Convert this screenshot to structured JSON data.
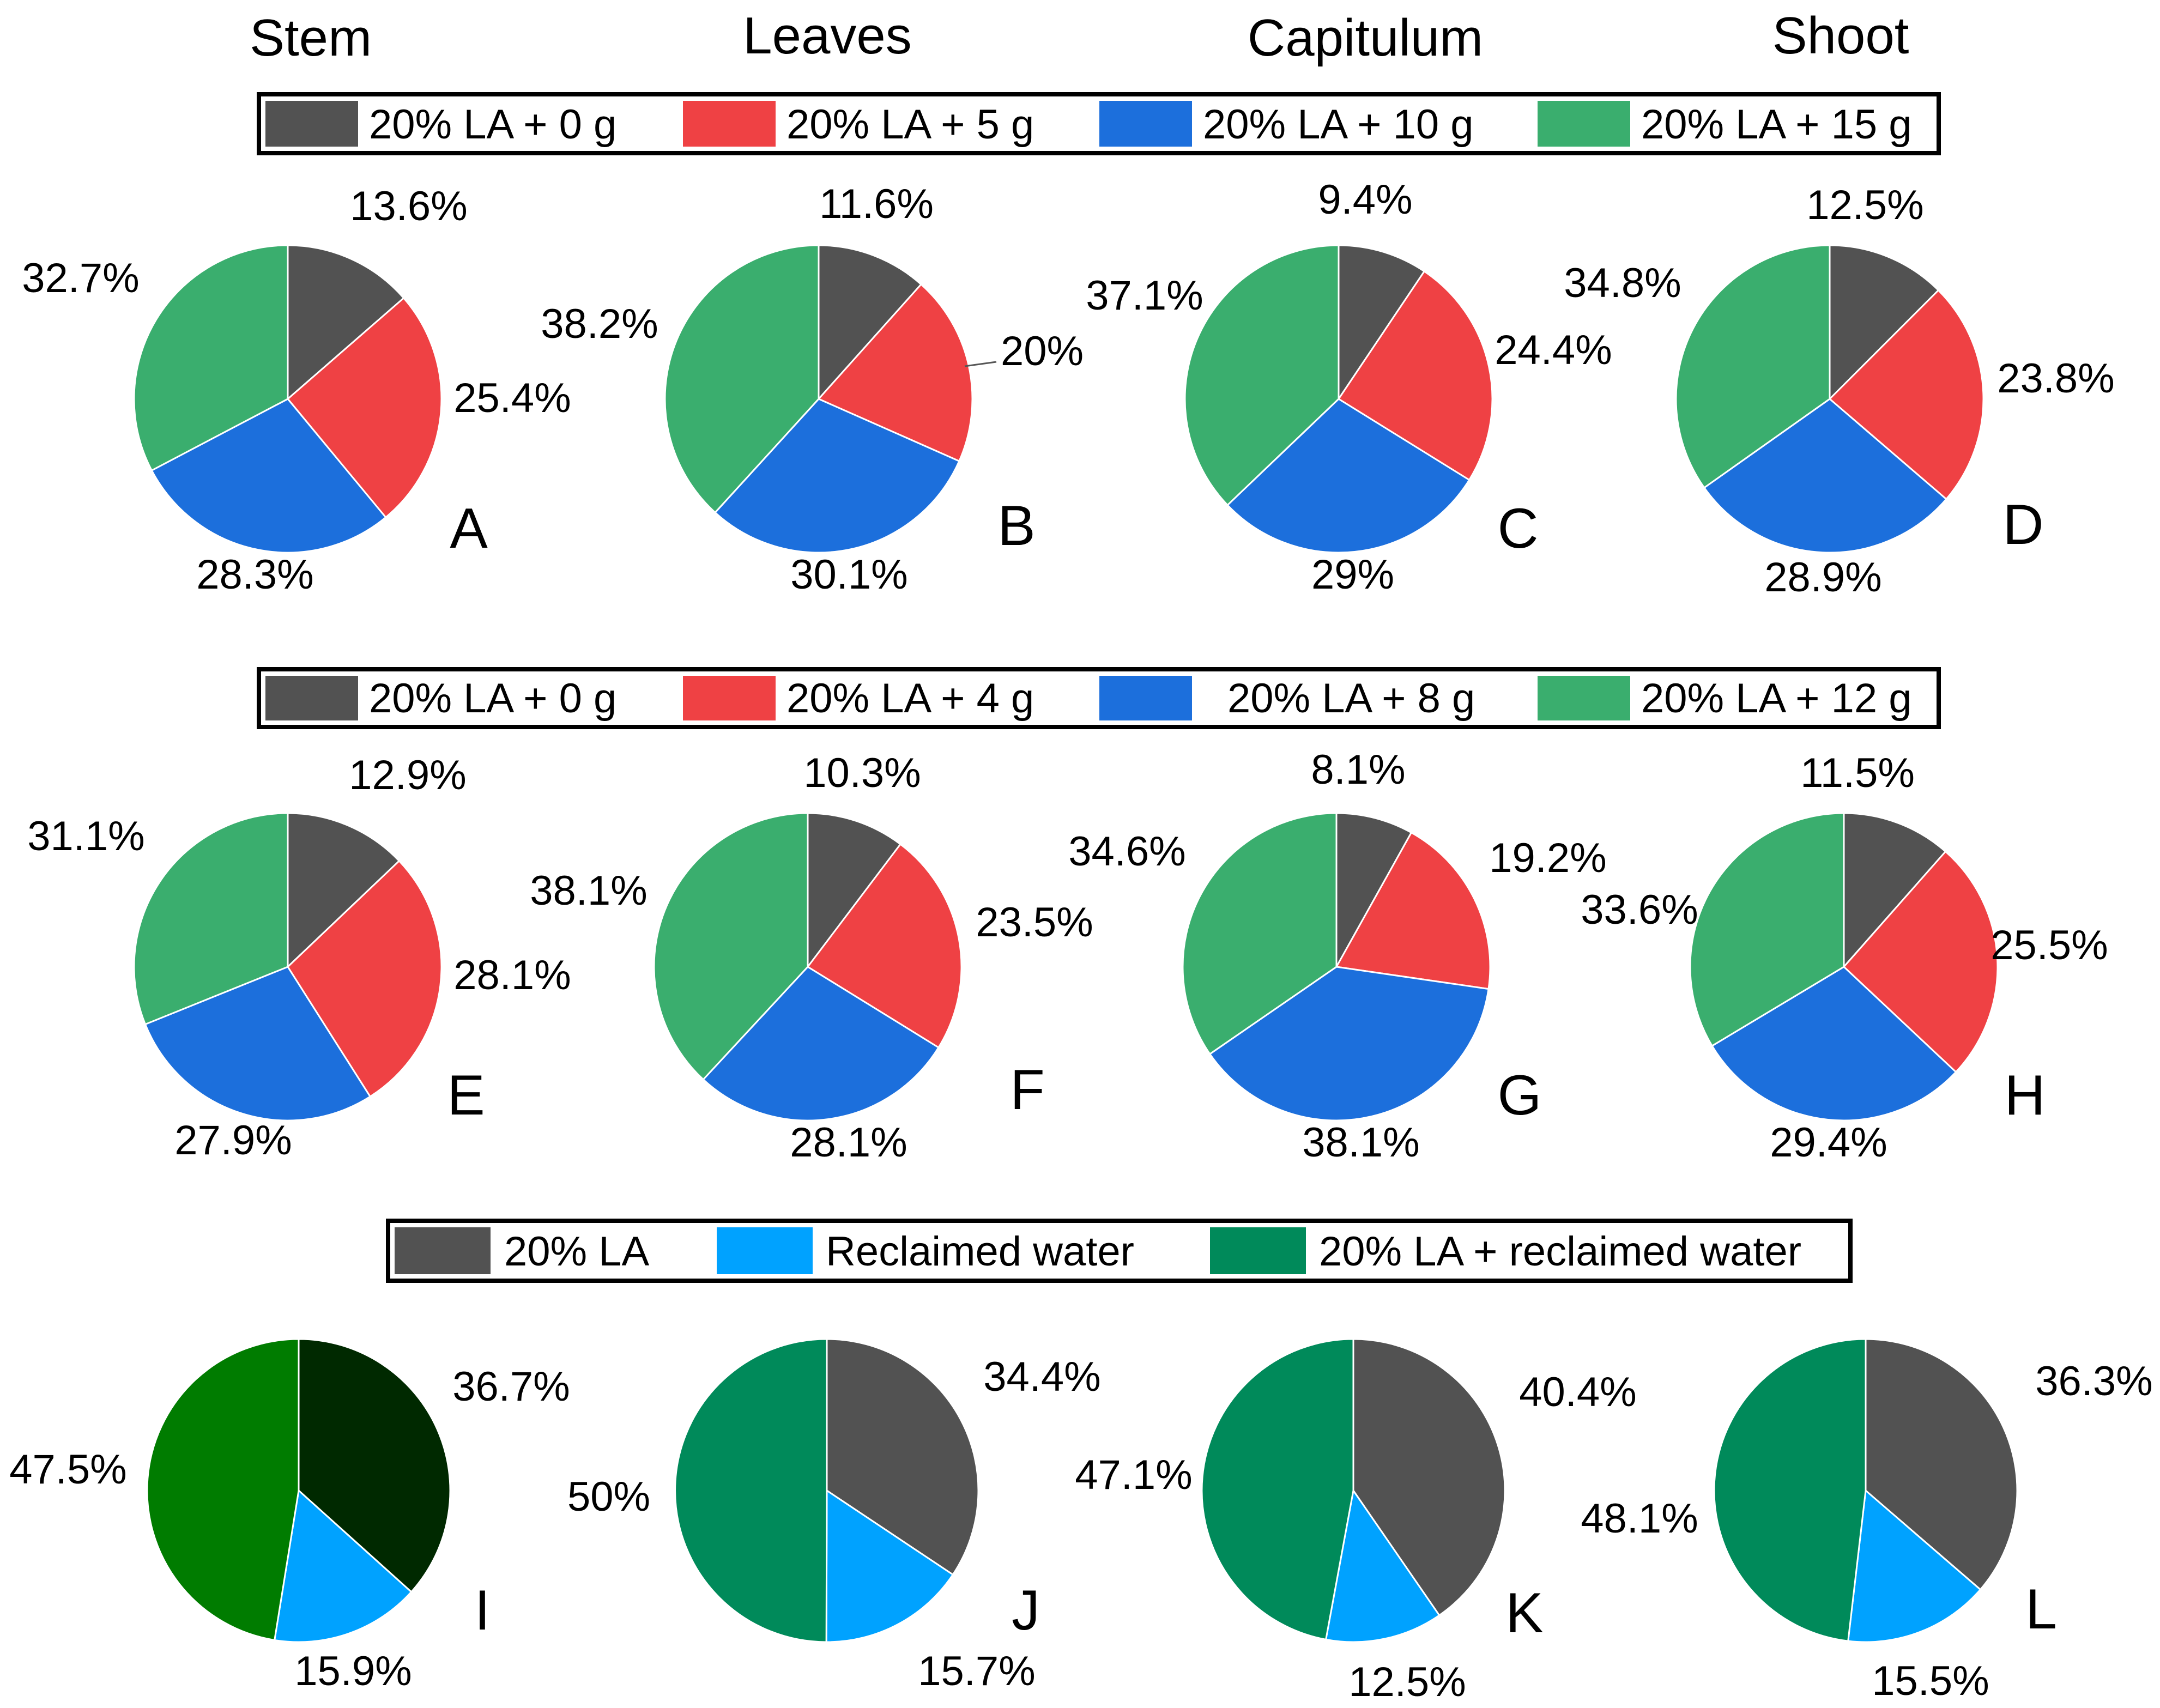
{
  "colors": {
    "la0": "#525252",
    "dose1": "#EF4144",
    "dose2": "#1C6FDC",
    "dose3": "#3AAE6E",
    "reclaimed": "#00A2FF",
    "combined": "#008A5A",
    "i_dark": "#002900",
    "i_green": "#007C00",
    "slice_edge": "#ffffff",
    "legend_border": "#000000"
  },
  "column_headers": [
    "Stem",
    "Leaves",
    "Capitulum",
    "Shoot"
  ],
  "legends": [
    {
      "items": [
        {
          "label": "20% LA + 0 g",
          "color_key": "la0"
        },
        {
          "label": "20% LA + 5 g",
          "color_key": "dose1"
        },
        {
          "label": "20% LA + 10 g",
          "color_key": "dose2"
        },
        {
          "label": "20% LA + 15 g",
          "color_key": "dose3"
        }
      ]
    },
    {
      "items": [
        {
          "label": "20% LA + 0 g",
          "color_key": "la0"
        },
        {
          "label": "20% LA + 4 g",
          "color_key": "dose1"
        },
        {
          "label": "20% LA + 8 g",
          "color_key": "dose2"
        },
        {
          "label": "20% LA + 12 g",
          "color_key": "dose3"
        }
      ]
    },
    {
      "items": [
        {
          "label": "20% LA",
          "color_key": "la0"
        },
        {
          "label": "Reclaimed water",
          "color_key": "reclaimed"
        },
        {
          "label": "20% LA + reclaimed water",
          "color_key": "combined"
        }
      ]
    }
  ],
  "chart_data": [
    {
      "type": "pie",
      "panel": "A",
      "column": "Stem",
      "legend_group": 0,
      "categories": [
        "20% LA + 0 g",
        "20% LA + 5 g",
        "20% LA + 10 g",
        "20% LA + 15 g"
      ],
      "values": [
        13.6,
        25.4,
        28.3,
        32.7
      ],
      "labels": [
        "13.6%",
        "25.4%",
        "28.3%",
        "32.7%"
      ],
      "color_keys": [
        "la0",
        "dose1",
        "dose2",
        "dose3"
      ]
    },
    {
      "type": "pie",
      "panel": "B",
      "column": "Leaves",
      "legend_group": 0,
      "categories": [
        "20% LA + 0 g",
        "20% LA + 5 g",
        "20% LA + 10 g",
        "20% LA + 15 g"
      ],
      "values": [
        11.6,
        20,
        30.1,
        38.2
      ],
      "labels": [
        "11.6%",
        "20%",
        "30.1%",
        "38.2%"
      ],
      "color_keys": [
        "la0",
        "dose1",
        "dose2",
        "dose3"
      ]
    },
    {
      "type": "pie",
      "panel": "C",
      "column": "Capitulum",
      "legend_group": 0,
      "categories": [
        "20% LA + 0 g",
        "20% LA + 5 g",
        "20% LA + 10 g",
        "20% LA + 15 g"
      ],
      "values": [
        9.4,
        24.4,
        29,
        37.1
      ],
      "labels": [
        "9.4%",
        "24.4%",
        "29%",
        "37.1%"
      ],
      "color_keys": [
        "la0",
        "dose1",
        "dose2",
        "dose3"
      ]
    },
    {
      "type": "pie",
      "panel": "D",
      "column": "Shoot",
      "legend_group": 0,
      "categories": [
        "20% LA + 0 g",
        "20% LA + 5 g",
        "20% LA + 10 g",
        "20% LA + 15 g"
      ],
      "values": [
        12.5,
        23.8,
        28.9,
        34.8
      ],
      "labels": [
        "12.5%",
        "23.8%",
        "28.9%",
        "34.8%"
      ],
      "color_keys": [
        "la0",
        "dose1",
        "dose2",
        "dose3"
      ]
    },
    {
      "type": "pie",
      "panel": "E",
      "column": "Stem",
      "legend_group": 1,
      "categories": [
        "20% LA + 0 g",
        "20% LA + 4 g",
        "20% LA + 8 g",
        "20% LA + 12 g"
      ],
      "values": [
        12.9,
        28.1,
        27.9,
        31.1
      ],
      "labels": [
        "12.9%",
        "28.1%",
        "27.9%",
        "31.1%"
      ],
      "color_keys": [
        "la0",
        "dose1",
        "dose2",
        "dose3"
      ]
    },
    {
      "type": "pie",
      "panel": "F",
      "column": "Leaves",
      "legend_group": 1,
      "categories": [
        "20% LA + 0 g",
        "20% LA + 4 g",
        "20% LA + 8 g",
        "20% LA + 12 g"
      ],
      "values": [
        10.3,
        23.5,
        28.1,
        38.1
      ],
      "labels": [
        "10.3%",
        "23.5%",
        "28.1%",
        "38.1%"
      ],
      "color_keys": [
        "la0",
        "dose1",
        "dose2",
        "dose3"
      ]
    },
    {
      "type": "pie",
      "panel": "G",
      "column": "Capitulum",
      "legend_group": 1,
      "categories": [
        "20% LA + 0 g",
        "20% LA + 4 g",
        "20% LA + 8 g",
        "20% LA + 12 g"
      ],
      "values": [
        8.1,
        19.2,
        38.1,
        34.6
      ],
      "labels": [
        "8.1%",
        "19.2%",
        "38.1%",
        "34.6%"
      ],
      "color_keys": [
        "la0",
        "dose1",
        "dose2",
        "dose3"
      ]
    },
    {
      "type": "pie",
      "panel": "H",
      "column": "Shoot",
      "legend_group": 1,
      "categories": [
        "20% LA + 0 g",
        "20% LA + 4 g",
        "20% LA + 8 g",
        "20% LA + 12 g"
      ],
      "values": [
        11.5,
        25.5,
        29.4,
        33.6
      ],
      "labels": [
        "11.5%",
        "25.5%",
        "29.4%",
        "33.6%"
      ],
      "color_keys": [
        "la0",
        "dose1",
        "dose2",
        "dose3"
      ]
    },
    {
      "type": "pie",
      "panel": "I",
      "column": "Stem",
      "legend_group": 2,
      "categories": [
        "20% LA",
        "Reclaimed water",
        "20% LA + reclaimed water"
      ],
      "values": [
        36.7,
        15.9,
        47.5
      ],
      "labels": [
        "36.7%",
        "15.9%",
        "47.5%"
      ],
      "color_keys": [
        "i_dark",
        "reclaimed",
        "i_green"
      ]
    },
    {
      "type": "pie",
      "panel": "J",
      "column": "Leaves",
      "legend_group": 2,
      "categories": [
        "20% LA",
        "Reclaimed water",
        "20% LA + reclaimed water"
      ],
      "values": [
        34.4,
        15.7,
        50
      ],
      "labels": [
        "34.4%",
        "15.7%",
        "50%"
      ],
      "color_keys": [
        "la0",
        "reclaimed",
        "combined"
      ]
    },
    {
      "type": "pie",
      "panel": "K",
      "column": "Capitulum",
      "legend_group": 2,
      "categories": [
        "20% LA",
        "Reclaimed water",
        "20% LA + reclaimed water"
      ],
      "values": [
        40.4,
        12.5,
        47.1
      ],
      "labels": [
        "40.4%",
        "12.5%",
        "47.1%"
      ],
      "color_keys": [
        "la0",
        "reclaimed",
        "combined"
      ]
    },
    {
      "type": "pie",
      "panel": "L",
      "column": "Shoot",
      "legend_group": 2,
      "categories": [
        "20% LA",
        "Reclaimed water",
        "20% LA + reclaimed water"
      ],
      "values": [
        36.3,
        15.5,
        48.1
      ],
      "labels": [
        "36.3%",
        "15.5%",
        "48.1%"
      ],
      "color_keys": [
        "la0",
        "reclaimed",
        "combined"
      ]
    }
  ]
}
